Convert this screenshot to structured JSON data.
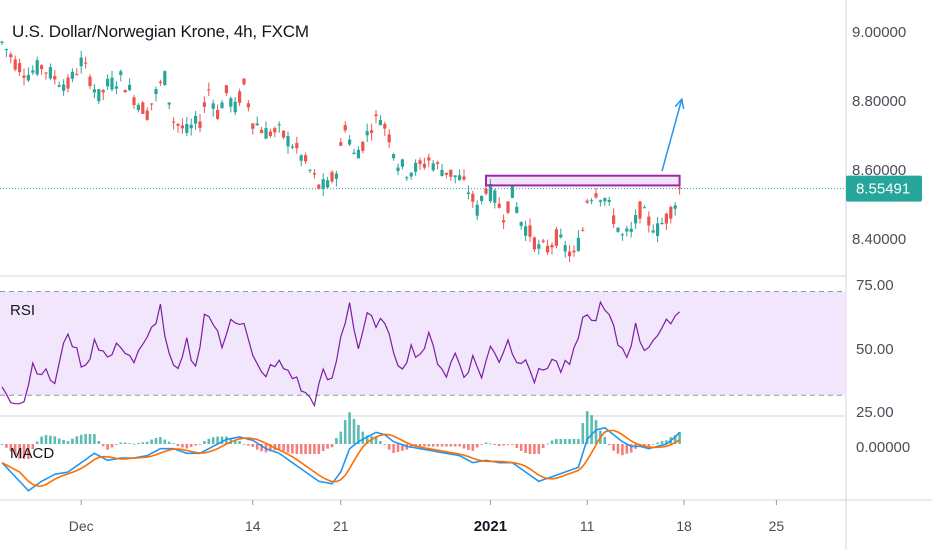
{
  "chart_data": [
    {
      "type": "candlestick",
      "title": "U.S. Dollar/Norwegian Krone, 4h, FXCM",
      "y_ticks": [
        "9.00000",
        "8.80000",
        "8.60000",
        "8.40000"
      ],
      "ylim": [
        8.33,
        9.04
      ],
      "current_price": "8.55491",
      "colors": {
        "up": "#26a69a",
        "down": "#ef5350",
        "price_line": "#26a69a",
        "arrow": "#2196f3",
        "rectangle": "#9c27b0"
      },
      "x_labels": [
        {
          "label": "Dec",
          "index": 18,
          "bold": false
        },
        {
          "label": "14",
          "index": 57,
          "bold": false
        },
        {
          "label": "21",
          "index": 77,
          "bold": false
        },
        {
          "label": "2021",
          "index": 111,
          "bold": true
        },
        {
          "label": "11",
          "index": 133,
          "bold": false
        },
        {
          "label": "18",
          "index": 155,
          "bold": false
        },
        {
          "label": "25",
          "index": 176,
          "bold": false
        }
      ],
      "total_slots": 190,
      "anchors": [
        [
          0,
          8.93
        ],
        [
          3,
          8.88
        ],
        [
          6,
          8.85
        ],
        [
          9,
          8.87
        ],
        [
          12,
          8.84
        ],
        [
          15,
          8.82
        ],
        [
          18,
          8.88
        ],
        [
          20,
          8.84
        ],
        [
          22,
          8.79
        ],
        [
          24,
          8.82
        ],
        [
          27,
          8.84
        ],
        [
          30,
          8.79
        ],
        [
          33,
          8.75
        ],
        [
          35,
          8.8
        ],
        [
          37,
          8.84
        ],
        [
          39,
          8.73
        ],
        [
          42,
          8.7
        ],
        [
          45,
          8.73
        ],
        [
          47,
          8.81
        ],
        [
          49,
          8.75
        ],
        [
          51,
          8.8
        ],
        [
          53,
          8.76
        ],
        [
          55,
          8.82
        ],
        [
          57,
          8.73
        ],
        [
          60,
          8.7
        ],
        [
          63,
          8.7
        ],
        [
          66,
          8.67
        ],
        [
          69,
          8.62
        ],
        [
          72,
          8.56
        ],
        [
          74,
          8.56
        ],
        [
          76,
          8.6
        ],
        [
          78,
          8.72
        ],
        [
          80,
          8.64
        ],
        [
          82,
          8.67
        ],
        [
          84,
          8.72
        ],
        [
          86,
          8.74
        ],
        [
          88,
          8.69
        ],
        [
          90,
          8.62
        ],
        [
          92,
          8.6
        ],
        [
          95,
          8.61
        ],
        [
          97,
          8.63
        ],
        [
          99,
          8.61
        ],
        [
          101,
          8.6
        ],
        [
          104,
          8.58
        ],
        [
          106,
          8.55
        ],
        [
          108,
          8.5
        ],
        [
          110,
          8.56
        ],
        [
          112,
          8.53
        ],
        [
          114,
          8.49
        ],
        [
          116,
          8.54
        ],
        [
          118,
          8.47
        ],
        [
          120,
          8.44
        ],
        [
          122,
          8.4
        ],
        [
          124,
          8.4
        ],
        [
          126,
          8.43
        ],
        [
          128,
          8.4
        ],
        [
          130,
          8.38
        ],
        [
          132,
          8.45
        ],
        [
          133,
          8.53
        ],
        [
          135,
          8.55
        ],
        [
          137,
          8.53
        ],
        [
          139,
          8.48
        ],
        [
          141,
          8.43
        ],
        [
          143,
          8.44
        ],
        [
          145,
          8.5
        ],
        [
          147,
          8.47
        ],
        [
          149,
          8.45
        ],
        [
          151,
          8.48
        ],
        [
          153,
          8.52
        ],
        [
          154,
          8.555
        ]
      ],
      "pattern_box": {
        "start_index": 110,
        "end_index": 154,
        "top": 8.588,
        "bottom": 8.563
      },
      "forecast_arrow": {
        "start_index": 150,
        "start_value": 8.6,
        "end_index": 154.5,
        "end_value": 8.785
      }
    },
    {
      "type": "line",
      "name": "RSI",
      "label": "RSI",
      "y_ticks": [
        "75.00",
        "50.00",
        "25.00"
      ],
      "ylim": [
        22,
        76
      ],
      "band": [
        30,
        70
      ],
      "colors": {
        "line": "#7b1fa2",
        "band_fill": "#f2e6fc",
        "band_border": "#9598a1"
      },
      "anchors": [
        [
          0,
          34
        ],
        [
          2,
          29
        ],
        [
          5,
          28
        ],
        [
          7,
          42
        ],
        [
          10,
          38
        ],
        [
          12,
          35
        ],
        [
          15,
          55
        ],
        [
          17,
          46
        ],
        [
          19,
          40
        ],
        [
          21,
          52
        ],
        [
          24,
          44
        ],
        [
          27,
          50
        ],
        [
          30,
          43
        ],
        [
          33,
          51
        ],
        [
          36,
          64
        ],
        [
          38,
          44
        ],
        [
          40,
          38
        ],
        [
          42,
          50
        ],
        [
          44,
          40
        ],
        [
          46,
          62
        ],
        [
          48,
          58
        ],
        [
          50,
          48
        ],
        [
          52,
          61
        ],
        [
          55,
          57
        ],
        [
          57,
          44
        ],
        [
          59,
          38
        ],
        [
          61,
          40
        ],
        [
          63,
          42
        ],
        [
          66,
          38
        ],
        [
          69,
          30
        ],
        [
          71,
          28
        ],
        [
          73,
          38
        ],
        [
          75,
          35
        ],
        [
          77,
          52
        ],
        [
          79,
          66
        ],
        [
          81,
          48
        ],
        [
          83,
          62
        ],
        [
          85,
          55
        ],
        [
          87,
          60
        ],
        [
          89,
          44
        ],
        [
          91,
          42
        ],
        [
          93,
          48
        ],
        [
          95,
          46
        ],
        [
          97,
          52
        ],
        [
          99,
          44
        ],
        [
          101,
          38
        ],
        [
          103,
          46
        ],
        [
          105,
          38
        ],
        [
          107,
          44
        ],
        [
          109,
          38
        ],
        [
          111,
          48
        ],
        [
          113,
          44
        ],
        [
          115,
          52
        ],
        [
          117,
          42
        ],
        [
          119,
          46
        ],
        [
          121,
          36
        ],
        [
          123,
          40
        ],
        [
          125,
          44
        ],
        [
          127,
          40
        ],
        [
          129,
          42
        ],
        [
          131,
          50
        ],
        [
          132,
          62
        ],
        [
          134,
          58
        ],
        [
          136,
          64
        ],
        [
          138,
          60
        ],
        [
          140,
          50
        ],
        [
          142,
          46
        ],
        [
          144,
          56
        ],
        [
          146,
          48
        ],
        [
          148,
          52
        ],
        [
          150,
          54
        ],
        [
          152,
          60
        ],
        [
          154,
          62
        ]
      ]
    },
    {
      "type": "line",
      "name": "MACD",
      "label": "MACD",
      "y_ticks": [
        "0.00000"
      ],
      "ylim": [
        -0.012,
        0.006
      ],
      "colors": {
        "macd": "#2196f3",
        "signal": "#ff6d00",
        "hist_up": "#26a69a",
        "hist_down": "#ef5350"
      },
      "macd_anchors": [
        [
          0,
          -0.004
        ],
        [
          3,
          -0.007
        ],
        [
          6,
          -0.01
        ],
        [
          9,
          -0.008
        ],
        [
          12,
          -0.0065
        ],
        [
          15,
          -0.006
        ],
        [
          18,
          -0.004
        ],
        [
          21,
          -0.002
        ],
        [
          24,
          -0.0035
        ],
        [
          27,
          -0.003
        ],
        [
          30,
          -0.003
        ],
        [
          33,
          -0.0025
        ],
        [
          36,
          -0.001
        ],
        [
          39,
          -0.001
        ],
        [
          42,
          -0.002
        ],
        [
          45,
          -0.002
        ],
        [
          48,
          -0.0005
        ],
        [
          51,
          0.001
        ],
        [
          54,
          0.0015
        ],
        [
          57,
          0.0008
        ],
        [
          60,
          -0.001
        ],
        [
          63,
          -0.002
        ],
        [
          66,
          -0.004
        ],
        [
          69,
          -0.006
        ],
        [
          72,
          -0.008
        ],
        [
          75,
          -0.0085
        ],
        [
          77,
          -0.006
        ],
        [
          79,
          -0.001
        ],
        [
          81,
          0.0005
        ],
        [
          83,
          0.0015
        ],
        [
          85,
          0.0025
        ],
        [
          87,
          0.002
        ],
        [
          89,
          0.0005
        ],
        [
          92,
          -0.0005
        ],
        [
          95,
          -0.001
        ],
        [
          98,
          -0.0015
        ],
        [
          101,
          -0.002
        ],
        [
          104,
          -0.0025
        ],
        [
          107,
          -0.004
        ],
        [
          110,
          -0.0035
        ],
        [
          113,
          -0.004
        ],
        [
          116,
          -0.004
        ],
        [
          119,
          -0.006
        ],
        [
          122,
          -0.008
        ],
        [
          125,
          -0.007
        ],
        [
          128,
          -0.006
        ],
        [
          131,
          -0.005
        ],
        [
          133,
          0.001
        ],
        [
          135,
          0.003
        ],
        [
          137,
          0.0035
        ],
        [
          139,
          0.002
        ],
        [
          141,
          0.0005
        ],
        [
          143,
          -0.0005
        ],
        [
          145,
          -0.0005
        ],
        [
          147,
          -0.001
        ],
        [
          149,
          -0.0005
        ],
        [
          151,
          0.0
        ],
        [
          153,
          0.0015
        ],
        [
          154,
          0.0025
        ]
      ],
      "signal_lag": 4
    }
  ]
}
